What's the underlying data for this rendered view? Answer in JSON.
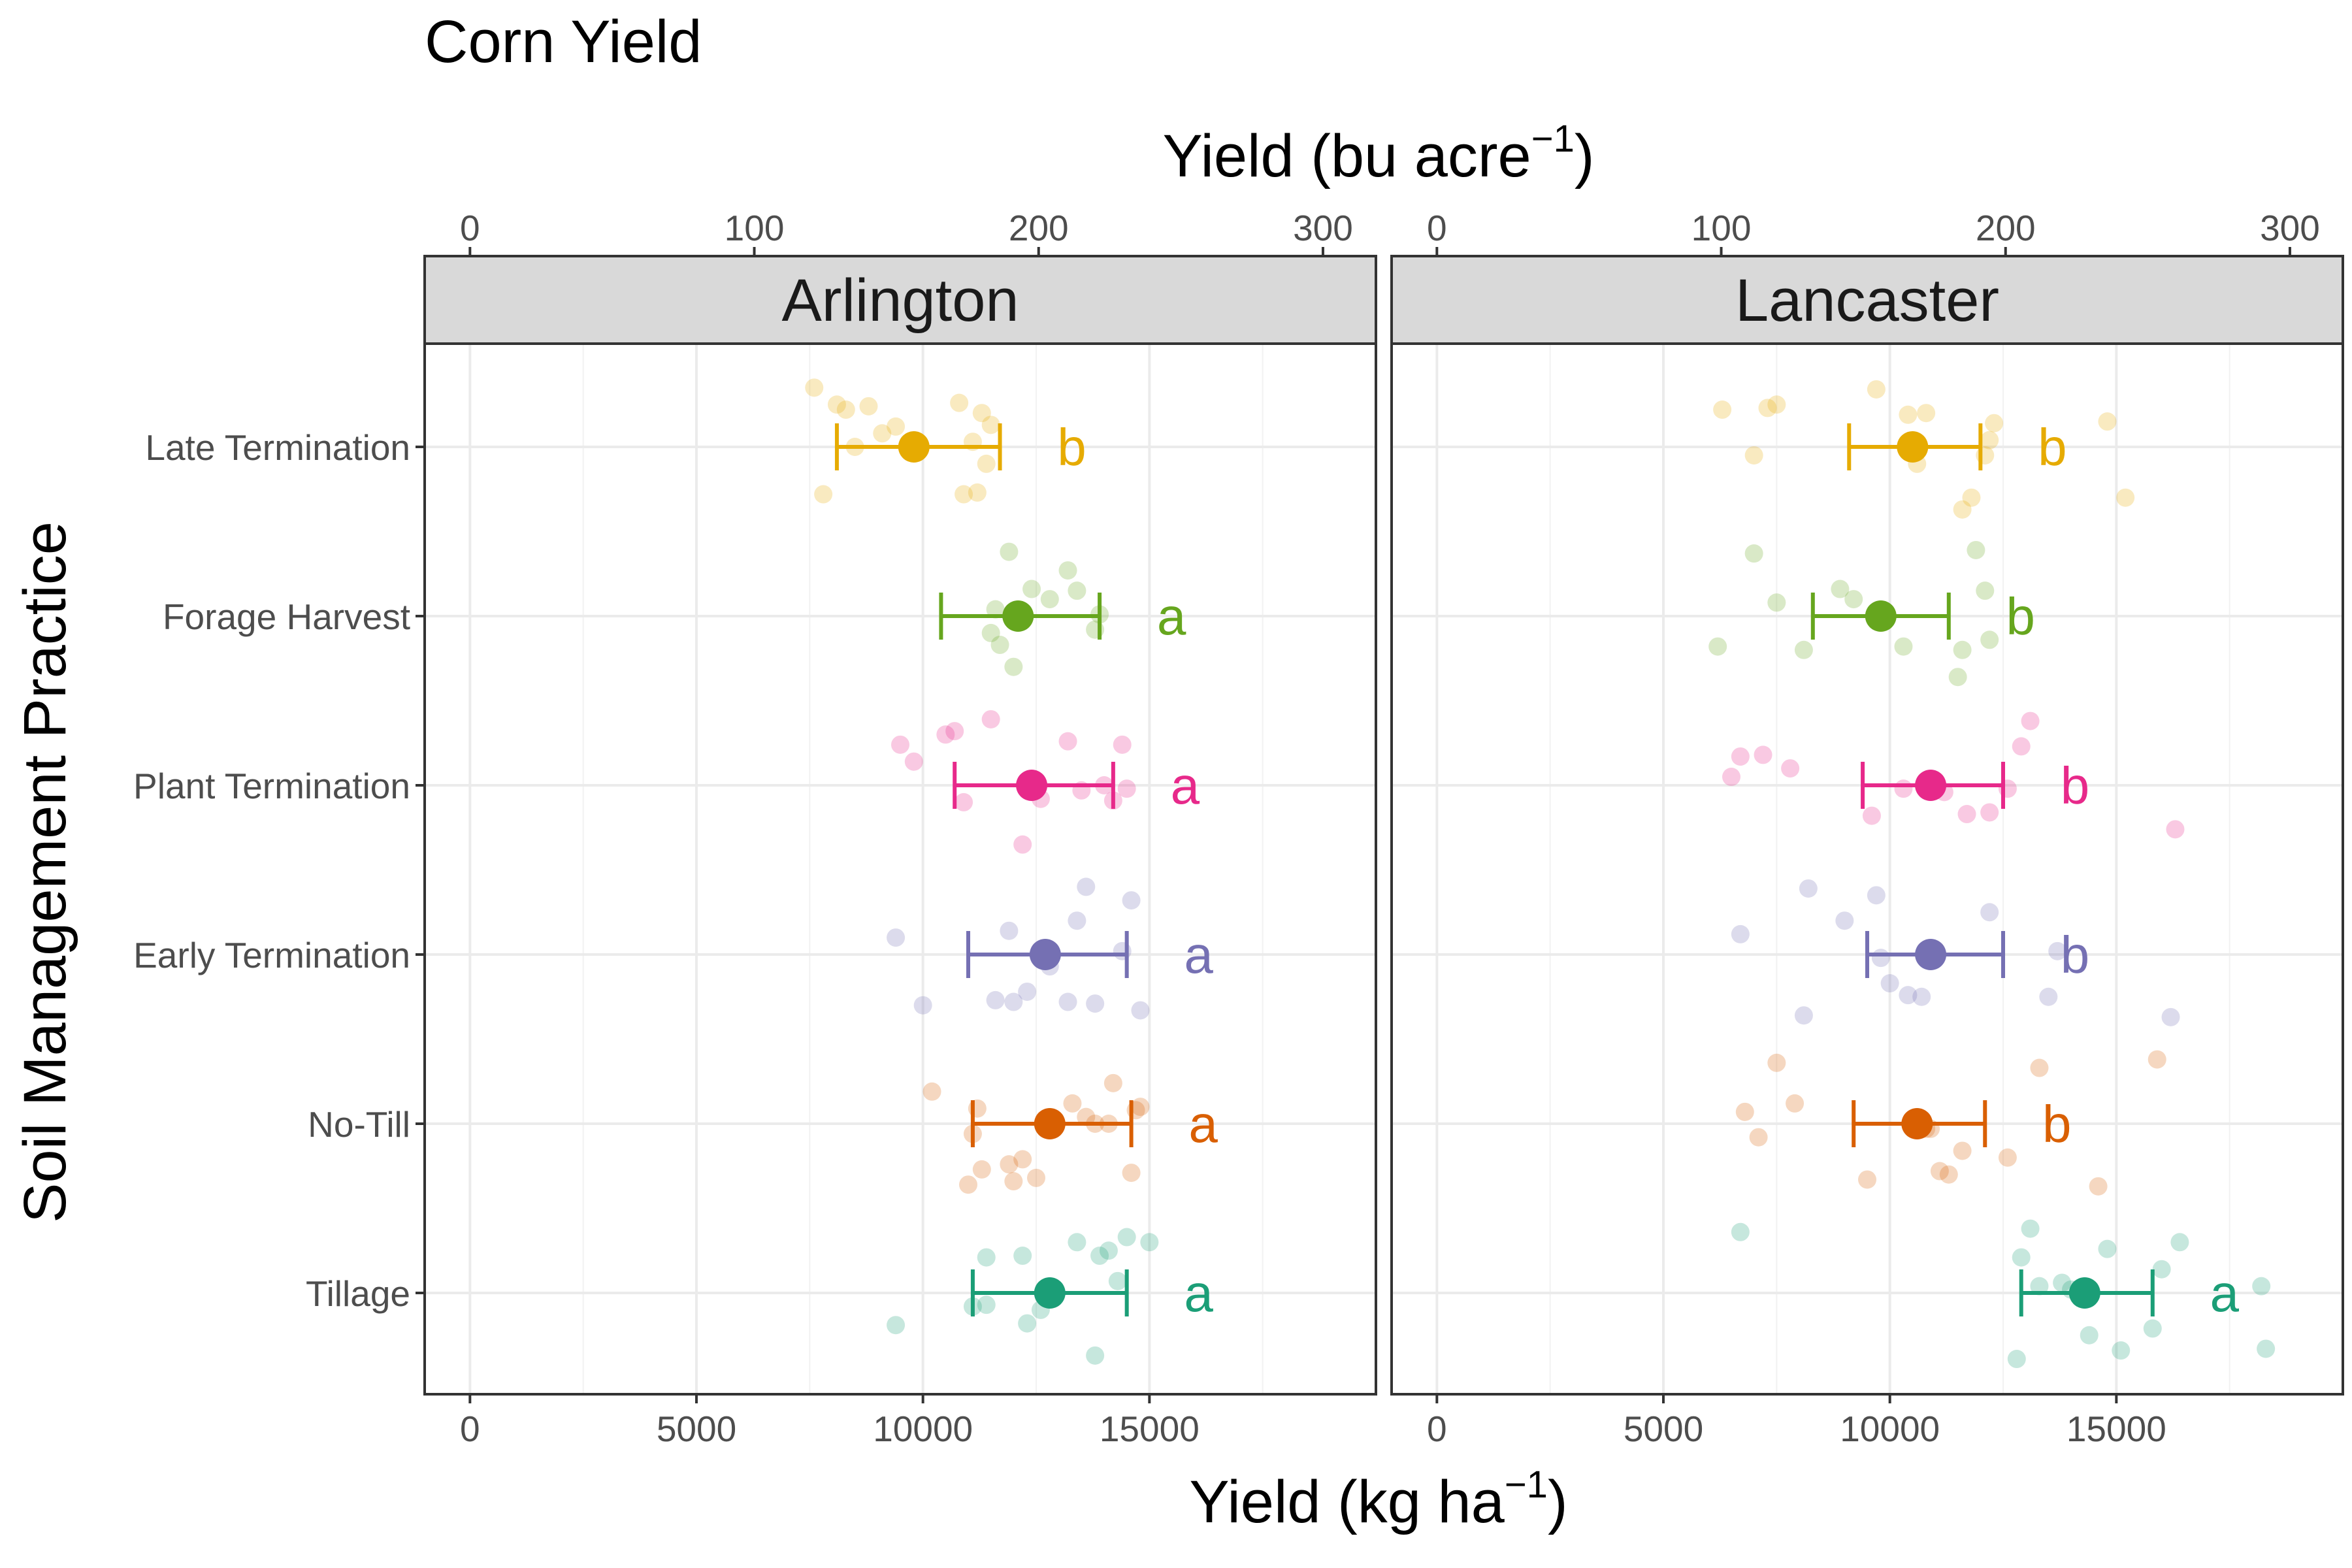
{
  "chart_data": {
    "type": "scatter",
    "title": "Corn Yield",
    "xlabel": "Yield (kg ha",
    "xlabel_superscript": "−1",
    "xlabel_close": ")",
    "x2label": "Yield (bu acre",
    "x2label_superscript": "−1",
    "x2label_close": ")",
    "ylabel": "Soil Management Practice",
    "xlim": [
      -1000,
      20000
    ],
    "x_ticks": [
      "0",
      "5000",
      "10000",
      "15000"
    ],
    "x_tick_values": [
      0,
      5000,
      10000,
      15000
    ],
    "x2_ticks": [
      "0",
      "100",
      "200",
      "300"
    ],
    "x2_tick_values": [
      0,
      100,
      200,
      300
    ],
    "bu_per_kg_factor": 62.77,
    "grid": true,
    "categories": [
      "Late Termination",
      "Forage Harvest",
      "Plant Termination",
      "Early Termination",
      "No-Till",
      "Tillage"
    ],
    "colors": {
      "Late Termination": "#E6AB02",
      "Forage Harvest": "#66A61E",
      "Plant Termination": "#E7298A",
      "Early Termination": "#7570B3",
      "No-Till": "#D95F02",
      "Tillage": "#1B9E77"
    },
    "panels": [
      {
        "name": "Arlington",
        "groups": [
          {
            "category": "Late Termination",
            "mean": 9800,
            "lower": 8100,
            "upper": 11700,
            "letter": "b",
            "points": [
              [
                7600,
                0.35
              ],
              [
                7800,
                -0.28
              ],
              [
                8100,
                0.25
              ],
              [
                8300,
                0.22
              ],
              [
                8500,
                0.0
              ],
              [
                8800,
                0.24
              ],
              [
                9100,
                0.08
              ],
              [
                9400,
                0.12
              ],
              [
                9700,
                0.0
              ],
              [
                10800,
                0.26
              ],
              [
                10900,
                -0.28
              ],
              [
                11100,
                0.03
              ],
              [
                11200,
                -0.27
              ],
              [
                11300,
                0.2
              ],
              [
                11400,
                -0.1
              ],
              [
                11500,
                0.13
              ]
            ]
          },
          {
            "category": "Forage Harvest",
            "mean": 12100,
            "lower": 10400,
            "upper": 13900,
            "letter": "a",
            "points": [
              [
                11900,
                0.38
              ],
              [
                11500,
                -0.1
              ],
              [
                11600,
                0.04
              ],
              [
                11700,
                -0.17
              ],
              [
                12000,
                -0.3
              ],
              [
                12400,
                0.16
              ],
              [
                12800,
                0.1
              ],
              [
                13200,
                0.27
              ],
              [
                13400,
                0.15
              ],
              [
                13900,
                0.01
              ],
              [
                13800,
                -0.08
              ]
            ]
          },
          {
            "category": "Plant Termination",
            "mean": 12400,
            "lower": 10700,
            "upper": 14200,
            "letter": "a",
            "points": [
              [
                9500,
                0.24
              ],
              [
                9800,
                0.14
              ],
              [
                10500,
                0.3
              ],
              [
                10700,
                0.32
              ],
              [
                10900,
                -0.1
              ],
              [
                11500,
                0.39
              ],
              [
                12200,
                -0.35
              ],
              [
                12600,
                -0.08
              ],
              [
                13200,
                0.26
              ],
              [
                13500,
                -0.03
              ],
              [
                14000,
                0.0
              ],
              [
                14200,
                -0.09
              ],
              [
                14400,
                0.24
              ],
              [
                14500,
                -0.02
              ]
            ]
          },
          {
            "category": "Early Termination",
            "mean": 12700,
            "lower": 11000,
            "upper": 14500,
            "letter": "a",
            "points": [
              [
                9400,
                0.1
              ],
              [
                10000,
                -0.3
              ],
              [
                11600,
                -0.27
              ],
              [
                11900,
                0.14
              ],
              [
                12000,
                -0.28
              ],
              [
                12300,
                -0.22
              ],
              [
                12800,
                -0.07
              ],
              [
                13200,
                -0.28
              ],
              [
                13400,
                0.2
              ],
              [
                13600,
                0.4
              ],
              [
                13800,
                -0.29
              ],
              [
                14400,
                0.02
              ],
              [
                14600,
                0.32
              ],
              [
                14800,
                -0.33
              ]
            ]
          },
          {
            "category": "No-Till",
            "mean": 12800,
            "lower": 11100,
            "upper": 14600,
            "letter": "a",
            "points": [
              [
                10200,
                0.19
              ],
              [
                11000,
                -0.36
              ],
              [
                11100,
                -0.06
              ],
              [
                11200,
                0.09
              ],
              [
                11300,
                -0.27
              ],
              [
                11900,
                -0.24
              ],
              [
                12000,
                -0.34
              ],
              [
                12200,
                -0.21
              ],
              [
                12500,
                -0.32
              ],
              [
                13300,
                0.12
              ],
              [
                13600,
                0.04
              ],
              [
                13800,
                0.0
              ],
              [
                14100,
                0.0
              ],
              [
                14200,
                0.24
              ],
              [
                14600,
                -0.29
              ],
              [
                14700,
                0.08
              ],
              [
                14800,
                0.1
              ]
            ]
          },
          {
            "category": "Tillage",
            "mean": 12800,
            "lower": 11100,
            "upper": 14500,
            "letter": "a",
            "points": [
              [
                9400,
                -0.19
              ],
              [
                11100,
                -0.08
              ],
              [
                11400,
                0.21
              ],
              [
                11400,
                -0.07
              ],
              [
                12200,
                0.22
              ],
              [
                12300,
                -0.18
              ],
              [
                12600,
                -0.1
              ],
              [
                13400,
                0.3
              ],
              [
                13800,
                -0.37
              ],
              [
                13900,
                0.22
              ],
              [
                14100,
                0.25
              ],
              [
                14300,
                0.07
              ],
              [
                14500,
                0.33
              ],
              [
                15000,
                0.3
              ]
            ]
          }
        ]
      },
      {
        "name": "Lancaster",
        "groups": [
          {
            "category": "Late Termination",
            "mean": 10500,
            "lower": 9100,
            "upper": 12000,
            "letter": "b",
            "points": [
              [
                6300,
                0.22
              ],
              [
                7000,
                -0.05
              ],
              [
                7300,
                0.23
              ],
              [
                7500,
                0.25
              ],
              [
                9700,
                0.34
              ],
              [
                10400,
                0.19
              ],
              [
                10800,
                0.2
              ],
              [
                10600,
                -0.1
              ],
              [
                11600,
                -0.37
              ],
              [
                11800,
                -0.3
              ],
              [
                12100,
                -0.05
              ],
              [
                12200,
                0.04
              ],
              [
                12300,
                0.14
              ],
              [
                14800,
                0.15
              ],
              [
                15200,
                -0.3
              ]
            ]
          },
          {
            "category": "Forage Harvest",
            "mean": 9800,
            "lower": 8300,
            "upper": 11300,
            "letter": "b",
            "points": [
              [
                6200,
                -0.18
              ],
              [
                7000,
                0.37
              ],
              [
                7500,
                0.08
              ],
              [
                8100,
                -0.2
              ],
              [
                8900,
                0.16
              ],
              [
                9200,
                0.1
              ],
              [
                10300,
                -0.18
              ],
              [
                11600,
                -0.2
              ],
              [
                11500,
                -0.36
              ],
              [
                11900,
                0.39
              ],
              [
                12100,
                0.15
              ],
              [
                12200,
                -0.14
              ]
            ]
          },
          {
            "category": "Plant Termination",
            "mean": 10900,
            "lower": 9400,
            "upper": 12500,
            "letter": "b",
            "points": [
              [
                6500,
                0.05
              ],
              [
                6700,
                0.17
              ],
              [
                7200,
                0.18
              ],
              [
                7800,
                0.1
              ],
              [
                9600,
                -0.18
              ],
              [
                10300,
                -0.02
              ],
              [
                11200,
                -0.04
              ],
              [
                11700,
                -0.17
              ],
              [
                12200,
                -0.16
              ],
              [
                12600,
                -0.02
              ],
              [
                12900,
                0.23
              ],
              [
                13100,
                0.38
              ],
              [
                16300,
                -0.26
              ]
            ]
          },
          {
            "category": "Early Termination",
            "mean": 10900,
            "lower": 9500,
            "upper": 12500,
            "letter": "b",
            "points": [
              [
                6700,
                0.12
              ],
              [
                8100,
                -0.36
              ],
              [
                8200,
                0.39
              ],
              [
                9000,
                0.2
              ],
              [
                9700,
                0.35
              ],
              [
                9800,
                -0.02
              ],
              [
                10000,
                -0.17
              ],
              [
                10400,
                -0.24
              ],
              [
                10700,
                -0.25
              ],
              [
                10800,
                -0.01
              ],
              [
                12200,
                0.25
              ],
              [
                13500,
                -0.25
              ],
              [
                13700,
                0.02
              ],
              [
                16200,
                -0.37
              ]
            ]
          },
          {
            "category": "No-Till",
            "mean": 10600,
            "lower": 9200,
            "upper": 12100,
            "letter": "b",
            "points": [
              [
                6800,
                0.07
              ],
              [
                7100,
                -0.08
              ],
              [
                7500,
                0.36
              ],
              [
                7900,
                0.12
              ],
              [
                9500,
                -0.33
              ],
              [
                10800,
                -0.03
              ],
              [
                10900,
                -0.03
              ],
              [
                11100,
                -0.28
              ],
              [
                11300,
                -0.3
              ],
              [
                11600,
                -0.16
              ],
              [
                12600,
                -0.2
              ],
              [
                13300,
                0.33
              ],
              [
                14600,
                -0.37
              ],
              [
                15900,
                0.38
              ]
            ]
          },
          {
            "category": "Tillage",
            "mean": 14300,
            "lower": 12900,
            "upper": 15800,
            "letter": "a",
            "points": [
              [
                6700,
                0.36
              ],
              [
                12800,
                -0.39
              ],
              [
                12900,
                0.21
              ],
              [
                13100,
                0.38
              ],
              [
                13300,
                0.04
              ],
              [
                13800,
                0.06
              ],
              [
                14000,
                0.02
              ],
              [
                14200,
                0.01
              ],
              [
                14400,
                -0.25
              ],
              [
                14800,
                0.26
              ],
              [
                15100,
                -0.34
              ],
              [
                15800,
                -0.21
              ],
              [
                16000,
                0.14
              ],
              [
                16400,
                0.3
              ],
              [
                18200,
                0.04
              ],
              [
                18300,
                -0.33
              ]
            ]
          }
        ]
      }
    ]
  }
}
